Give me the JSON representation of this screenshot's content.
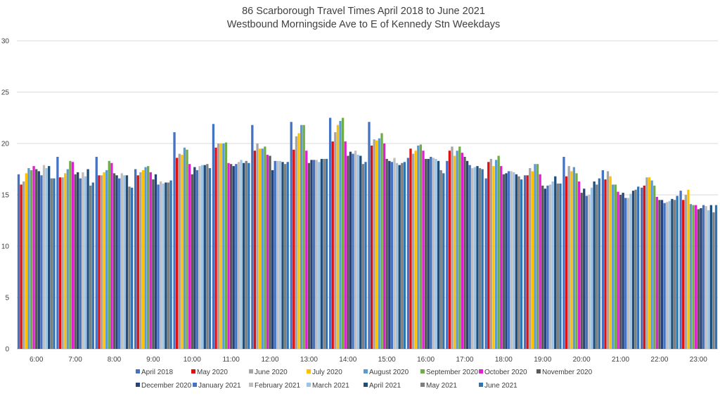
{
  "chart_data": {
    "type": "bar",
    "title": "86 Scarborough Travel Times April 2018 to June 2021",
    "subtitle": "Westbound Morningside Ave to E of Kennedy Stn Weekdays",
    "xlabel": "",
    "ylabel": "",
    "ylim": [
      0,
      30
    ],
    "yticks": [
      0,
      5,
      10,
      15,
      20,
      25,
      30
    ],
    "grid": true,
    "legend_position": "bottom",
    "categories": [
      "6:00",
      "7:00",
      "8:00",
      "9:00",
      "10:00",
      "11:00",
      "12:00",
      "13:00",
      "14:00",
      "15:00",
      "16:00",
      "17:00",
      "18:00",
      "19:00",
      "20:00",
      "21:00",
      "22:00",
      "23:00"
    ],
    "series": [
      {
        "name": "April 2018",
        "color": "#4472C4",
        "values": [
          17.0,
          18.7,
          18.7,
          17.5,
          21.1,
          21.9,
          21.8,
          22.1,
          22.5,
          22.1,
          18.6,
          18.3,
          16.6,
          16.9,
          18.7,
          17.4,
          15.7,
          15.4
        ]
      },
      {
        "name": "May 2020",
        "color": "#E01010",
        "values": [
          16.0,
          16.7,
          16.9,
          16.9,
          18.6,
          19.6,
          19.3,
          19.4,
          20.2,
          19.8,
          19.5,
          19.3,
          18.2,
          16.9,
          16.8,
          16.5,
          15.9,
          14.5
        ]
      },
      {
        "name": "June 2020",
        "color": "#A5A5A5",
        "values": [
          16.3,
          16.7,
          16.9,
          17.2,
          19.0,
          20.0,
          20.0,
          20.7,
          21.1,
          20.4,
          19.0,
          19.7,
          18.5,
          17.6,
          17.8,
          17.3,
          16.7,
          15.0
        ]
      },
      {
        "name": "July 2020",
        "color": "#FFC000",
        "values": [
          17.1,
          17.1,
          17.2,
          17.4,
          18.9,
          20.0,
          19.5,
          21.0,
          21.8,
          20.3,
          19.3,
          18.8,
          17.8,
          17.3,
          17.3,
          16.8,
          16.7,
          15.5
        ]
      },
      {
        "name": "August 2020",
        "color": "#5B9BD5",
        "values": [
          17.6,
          17.5,
          17.4,
          17.7,
          19.6,
          20.0,
          19.5,
          21.8,
          22.2,
          20.5,
          19.8,
          19.3,
          18.4,
          18.0,
          17.7,
          16.0,
          16.4,
          14.1
        ]
      },
      {
        "name": "September 2020",
        "color": "#70AD47",
        "values": [
          17.4,
          18.3,
          18.3,
          17.8,
          19.4,
          20.1,
          19.7,
          21.8,
          22.5,
          21.0,
          19.9,
          19.7,
          18.8,
          18.0,
          17.1,
          16.0,
          15.9,
          14.0
        ]
      },
      {
        "name": "October 2020",
        "color": "#E020D0",
        "values": [
          17.8,
          18.2,
          18.1,
          17.2,
          18.0,
          18.1,
          18.9,
          19.3,
          20.2,
          20.0,
          19.3,
          19.1,
          17.8,
          17.0,
          16.3,
          15.3,
          14.8,
          14.0
        ]
      },
      {
        "name": "November 2020",
        "color": "#595959",
        "values": [
          17.5,
          17.0,
          17.1,
          16.5,
          17.0,
          18.0,
          18.8,
          18.1,
          18.8,
          18.5,
          18.5,
          18.7,
          17.0,
          15.9,
          15.2,
          15.0,
          14.5,
          13.6
        ]
      },
      {
        "name": "December 2020",
        "color": "#264478",
        "values": [
          17.3,
          17.2,
          16.9,
          17.0,
          17.7,
          17.8,
          17.4,
          18.4,
          19.2,
          18.3,
          18.5,
          18.3,
          17.1,
          15.6,
          15.6,
          15.2,
          14.5,
          13.7
        ]
      },
      {
        "name": "January 2021",
        "color": "#4472C4",
        "values": [
          16.9,
          16.6,
          16.6,
          16.0,
          17.4,
          18.0,
          18.3,
          18.4,
          19.0,
          18.2,
          18.7,
          17.9,
          17.3,
          15.9,
          14.9,
          14.7,
          14.2,
          14.0
        ]
      },
      {
        "name": "February 2021",
        "color": "#BFBFBF",
        "values": [
          17.9,
          17.2,
          17.1,
          16.3,
          17.8,
          18.2,
          18.3,
          18.4,
          19.3,
          18.6,
          18.6,
          17.6,
          17.3,
          16.0,
          15.0,
          14.7,
          14.3,
          13.9
        ]
      },
      {
        "name": "March 2021",
        "color": "#9DC3E6",
        "values": [
          17.6,
          16.8,
          16.9,
          16.1,
          17.9,
          18.4,
          18.3,
          18.2,
          18.9,
          18.1,
          18.5,
          17.7,
          17.2,
          16.3,
          15.7,
          15.1,
          14.4,
          13.5
        ]
      },
      {
        "name": "April 2021",
        "color": "#1F4E79",
        "values": [
          17.8,
          17.5,
          16.9,
          16.2,
          17.9,
          18.1,
          18.2,
          18.5,
          18.8,
          17.9,
          18.3,
          17.8,
          17.0,
          16.8,
          16.3,
          15.4,
          14.6,
          14.0
        ]
      },
      {
        "name": "May 2021",
        "color": "#7F7F7F",
        "values": [
          16.6,
          15.9,
          15.8,
          16.2,
          18.0,
          18.3,
          18.0,
          18.5,
          18.0,
          18.1,
          17.4,
          17.6,
          16.8,
          16.1,
          16.0,
          15.5,
          14.5,
          13.3
        ]
      },
      {
        "name": "June 2021",
        "color": "#2E75B6",
        "values": [
          16.6,
          16.2,
          15.7,
          16.4,
          17.6,
          18.1,
          18.2,
          18.5,
          18.2,
          18.2,
          17.1,
          17.5,
          16.5,
          16.1,
          16.6,
          15.8,
          14.9,
          14.0
        ]
      }
    ]
  }
}
